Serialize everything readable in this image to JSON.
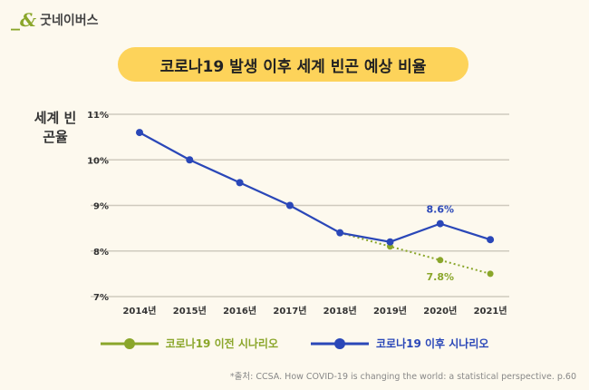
{
  "logo": {
    "name": "굿네이버스"
  },
  "chart_data": {
    "type": "line",
    "title": "코로나19 발생 이후 세계 빈곤 예상 비율",
    "ylabel": "세계 빈곤율",
    "categories": [
      "2014년",
      "2015년",
      "2016년",
      "2017년",
      "2018년",
      "2019년",
      "2020년",
      "2021년"
    ],
    "y_ticks": [
      "7%",
      "8%",
      "9%",
      "10%",
      "11%"
    ],
    "ylim": [
      7,
      11
    ],
    "grid": true,
    "legend_position": "bottom",
    "series": [
      {
        "name": "코로나19 이전 시나리오",
        "color": "#8aa62a",
        "style": "dotted",
        "start_index": 4,
        "values": [
          null,
          null,
          null,
          null,
          8.4,
          8.1,
          7.8,
          7.5
        ],
        "labels": {
          "6": "7.8%"
        }
      },
      {
        "name": "코로나19 이후 시나리오",
        "color": "#2a47b8",
        "style": "solid",
        "start_index": 0,
        "values": [
          10.6,
          10.0,
          9.5,
          9.0,
          8.4,
          8.2,
          8.6,
          8.25
        ],
        "labels": {
          "6": "8.6%"
        }
      }
    ],
    "source": "*출처: CCSA. How COVID-19 is changing the world: a statistical perspective. p.60"
  }
}
